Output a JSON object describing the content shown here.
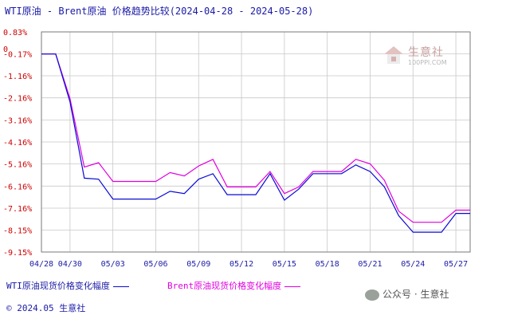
{
  "title": "WTI原油 - Brent原油 价格趋势比较(2024-04-28 - 2024-05-28)",
  "footer": "© 2024.05 生意社",
  "watermark": {
    "brand": "生意社",
    "sub": "100PPI.COM",
    "bottom": "公众号 · 生意社"
  },
  "colors": {
    "wti": "#0a0ad6",
    "brent": "#e000e0",
    "axis_text_y": "#cc0000",
    "axis_text_x": "#1a1aa6",
    "grid": "#c8c8c8"
  },
  "chart_data": {
    "type": "line",
    "title": "WTI原油 - Brent原油 价格趋势比较(2024-04-28 - 2024-05-28)",
    "y_ticks": [
      "0.83%",
      "-0.17%",
      "-1.16%",
      "-2.16%",
      "-3.16%",
      "-4.16%",
      "-5.16%",
      "-6.16%",
      "-7.16%",
      "-8.15%",
      "-9.15%"
    ],
    "y_tick_values": [
      0.83,
      -0.17,
      -1.16,
      -2.16,
      -3.16,
      -4.16,
      -5.16,
      -6.16,
      -7.16,
      -8.15,
      -9.15
    ],
    "y_zero_label": "0",
    "ylim": [
      -9.15,
      0.83
    ],
    "x_ticks": [
      "04/28",
      "04/30",
      "05/03",
      "05/06",
      "05/09",
      "05/12",
      "05/15",
      "05/18",
      "05/21",
      "05/24",
      "05/27"
    ],
    "grid": true,
    "legend_position": "bottom",
    "x": [
      "04/28",
      "04/29",
      "04/30",
      "05/01",
      "05/02",
      "05/03",
      "05/04",
      "05/05",
      "05/06",
      "05/07",
      "05/08",
      "05/09",
      "05/10",
      "05/11",
      "05/12",
      "05/13",
      "05/14",
      "05/15",
      "05/16",
      "05/17",
      "05/18",
      "05/19",
      "05/20",
      "05/21",
      "05/22",
      "05/23",
      "05/24",
      "05/25",
      "05/26",
      "05/27",
      "05/28"
    ],
    "series": [
      {
        "name": "WTI原油现货价格变化幅度",
        "color": "#0a0ad6",
        "values": [
          -0.17,
          -0.17,
          -2.35,
          -5.8,
          -5.85,
          -6.75,
          -6.75,
          -6.75,
          -6.75,
          -6.4,
          -6.5,
          -5.85,
          -5.6,
          -6.55,
          -6.55,
          -6.55,
          -5.6,
          -6.8,
          -6.3,
          -5.6,
          -5.6,
          -5.6,
          -5.2,
          -5.5,
          -6.2,
          -7.5,
          -8.25,
          -8.25,
          -8.25,
          -7.4,
          -7.4
        ]
      },
      {
        "name": "Brent原油现货价格变化幅度",
        "color": "#e000e0",
        "values": [
          -0.17,
          -0.17,
          -2.2,
          -5.3,
          -5.1,
          -5.95,
          -5.95,
          -5.95,
          -5.95,
          -5.55,
          -5.7,
          -5.25,
          -4.95,
          -6.2,
          -6.2,
          -6.2,
          -5.5,
          -6.5,
          -6.2,
          -5.5,
          -5.5,
          -5.5,
          -4.95,
          -5.15,
          -5.9,
          -7.3,
          -7.8,
          -7.8,
          -7.8,
          -7.25,
          -7.25
        ]
      }
    ]
  }
}
